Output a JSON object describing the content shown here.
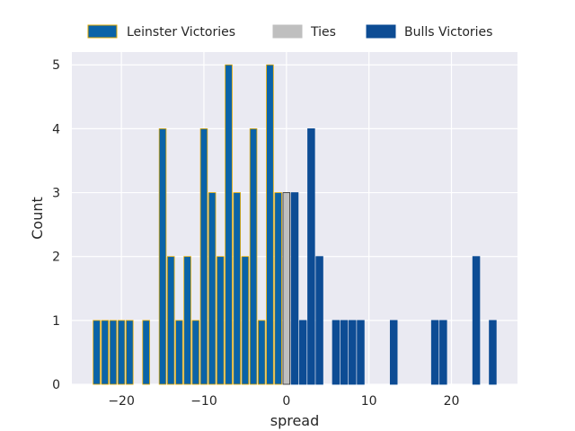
{
  "chart_data": {
    "type": "bar",
    "title": "",
    "xlabel": "spread",
    "ylabel": "Count",
    "xlim": [
      -26,
      28
    ],
    "ylim": [
      0,
      5.2
    ],
    "xticks": [
      -20,
      -10,
      0,
      10,
      20
    ],
    "xtick_labels": [
      "−20",
      "−10",
      "0",
      "10",
      "20"
    ],
    "yticks": [
      0,
      1,
      2,
      3,
      4,
      5
    ],
    "ytick_labels": [
      "0",
      "1",
      "2",
      "3",
      "4",
      "5"
    ],
    "grid": true,
    "legend_position": "top",
    "series": [
      {
        "name": "Leinster Victories",
        "color": "#0a63a8",
        "edge_color": "#e0a800",
        "points": [
          {
            "x": -23,
            "count": 1
          },
          {
            "x": -22,
            "count": 1
          },
          {
            "x": -21,
            "count": 1
          },
          {
            "x": -20,
            "count": 1
          },
          {
            "x": -19,
            "count": 1
          },
          {
            "x": -17,
            "count": 1
          },
          {
            "x": -15,
            "count": 4
          },
          {
            "x": -14,
            "count": 2
          },
          {
            "x": -13,
            "count": 1
          },
          {
            "x": -12,
            "count": 2
          },
          {
            "x": -11,
            "count": 1
          },
          {
            "x": -10,
            "count": 4
          },
          {
            "x": -9,
            "count": 3
          },
          {
            "x": -8,
            "count": 2
          },
          {
            "x": -7,
            "count": 5
          },
          {
            "x": -6,
            "count": 3
          },
          {
            "x": -5,
            "count": 2
          },
          {
            "x": -4,
            "count": 4
          },
          {
            "x": -3,
            "count": 1
          },
          {
            "x": -2,
            "count": 5
          },
          {
            "x": -1,
            "count": 3
          }
        ]
      },
      {
        "name": "Ties",
        "color": "#bfbfbf",
        "edge_color": "#262626",
        "points": [
          {
            "x": 0,
            "count": 3
          }
        ]
      },
      {
        "name": "Bulls Victories",
        "color": "#0d4c94",
        "edge_color": "#0d4c94",
        "points": [
          {
            "x": 1,
            "count": 3
          },
          {
            "x": 2,
            "count": 1
          },
          {
            "x": 3,
            "count": 4
          },
          {
            "x": 4,
            "count": 2
          },
          {
            "x": 6,
            "count": 1
          },
          {
            "x": 7,
            "count": 1
          },
          {
            "x": 8,
            "count": 1
          },
          {
            "x": 9,
            "count": 1
          },
          {
            "x": 13,
            "count": 1
          },
          {
            "x": 18,
            "count": 1
          },
          {
            "x": 19,
            "count": 1
          },
          {
            "x": 23,
            "count": 2
          },
          {
            "x": 25,
            "count": 1
          }
        ]
      }
    ]
  },
  "legend": {
    "items": [
      {
        "label": "Leinster Victories",
        "color": "#0a63a8",
        "edge_color": "#e0a800"
      },
      {
        "label": "Ties",
        "color": "#bfbfbf",
        "edge_color": "#bfbfbf"
      },
      {
        "label": "Bulls Victories",
        "color": "#0d4c94",
        "edge_color": "#0d4c94"
      }
    ]
  },
  "style": {
    "plot_background": "#eaeaf2",
    "grid_color": "#ffffff",
    "text_color": "#262626"
  }
}
